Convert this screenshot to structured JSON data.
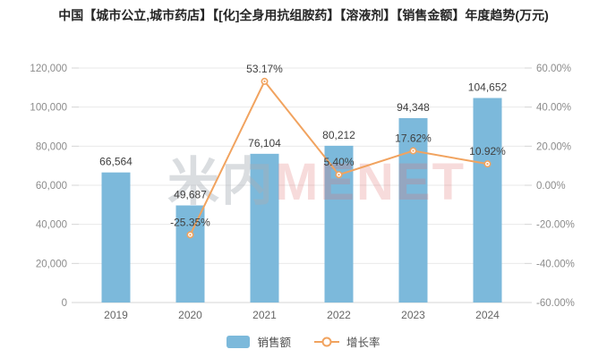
{
  "title": "中国【城市公立,城市药店】【[化]全身用抗组胺药】【溶液剂】【销售金额】年度趋势(万元)",
  "watermark": {
    "cn": "米内",
    "en": "MENET"
  },
  "colors": {
    "bar": "#7CB9DB",
    "line": "#F1A35F",
    "value_label": "#404040",
    "axis_label": "#8C8C8C",
    "category_label": "#666666",
    "grid": "#E9E9E9",
    "axis_line": "#D4D4D4",
    "legend_text": "#4D4D4D",
    "watermark_cn": "#A8AEB4",
    "watermark_en": "#E07070"
  },
  "legend": [
    {
      "label": "销售额",
      "type": "bar"
    },
    {
      "label": "增长率",
      "type": "line"
    }
  ],
  "chart_data": {
    "type": "bar+line combo",
    "title": "中国【城市公立,城市药店】【[化]全身用抗组胺药】【溶液剂】【销售金额】年度趋势(万元)",
    "categories": [
      "2019",
      "2020",
      "2021",
      "2022",
      "2023",
      "2024"
    ],
    "series": [
      {
        "name": "销售额",
        "type": "bar",
        "axis": "left",
        "values": [
          66564,
          49687,
          76104,
          80212,
          94348,
          104652
        ],
        "labels": [
          "66,564",
          "49,687",
          "76,104",
          "80,212",
          "94,348",
          "104,652"
        ]
      },
      {
        "name": "增长率",
        "type": "line",
        "axis": "right",
        "values": [
          null,
          -25.35,
          53.17,
          5.4,
          17.62,
          10.92
        ],
        "labels": [
          null,
          "-25.35%",
          "53.17%",
          "5.40%",
          "17.62%",
          "10.92%"
        ]
      }
    ],
    "left_axis": {
      "min": 0,
      "max": 120000,
      "step": 20000,
      "tick_labels": [
        "0",
        "20,000",
        "40,000",
        "60,000",
        "80,000",
        "100,000",
        "120,000"
      ]
    },
    "right_axis": {
      "min": -60,
      "max": 60,
      "step": 20,
      "tick_labels": [
        "-60.00%",
        "-40.00%",
        "-20.00%",
        "0.00%",
        "20.00%",
        "40.00%",
        "60.00%"
      ]
    },
    "grid": true,
    "legend_position": "bottom"
  }
}
